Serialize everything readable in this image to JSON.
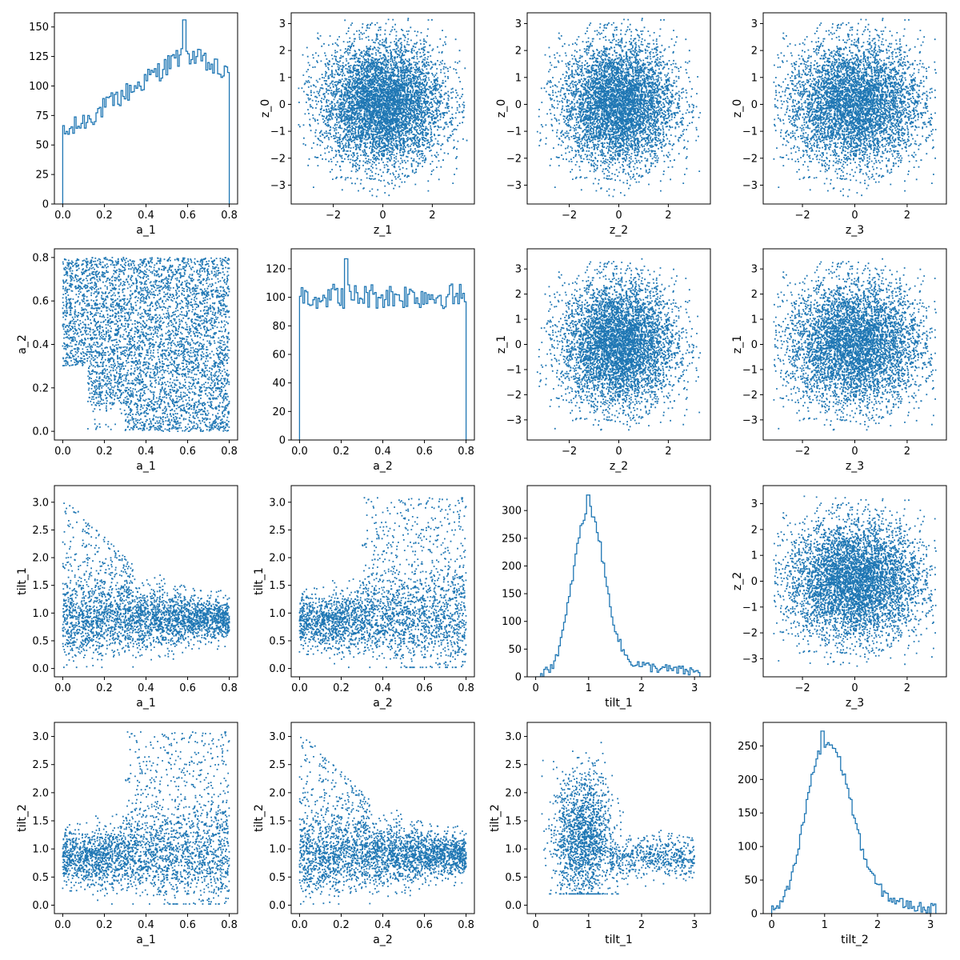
{
  "style": {
    "series_color": "#1f77b4"
  },
  "chart_data": [
    {
      "type": "histogram",
      "row": 0,
      "col": 0,
      "xlabel": "a_1",
      "ylabel": "",
      "xlim": [
        -0.04,
        0.84
      ],
      "ylim": [
        0,
        162
      ],
      "xticks": [
        0.0,
        0.2,
        0.4,
        0.6,
        0.8
      ],
      "xticklabels": [
        "0.0",
        "0.2",
        "0.4",
        "0.6",
        "0.8"
      ],
      "yticks": [
        0,
        25,
        50,
        75,
        100,
        125,
        150
      ],
      "yticklabels": [
        "0",
        "25",
        "50",
        "75",
        "100",
        "125",
        "150"
      ],
      "bin_range": [
        0,
        0.8
      ],
      "dist": {
        "shape": "ramp",
        "lo": 58,
        "hi": 128,
        "decline": 20,
        "noise": 9,
        "peak": {
          "x": 0.585,
          "v": 156
        }
      }
    },
    {
      "type": "scatter",
      "row": 0,
      "col": 1,
      "xlabel": "z_1",
      "ylabel": "z_0",
      "xlim": [
        -3.7,
        3.7
      ],
      "ylim": [
        -3.7,
        3.4
      ],
      "xticks": [
        -2,
        0,
        2
      ],
      "xticklabels": [
        "−2",
        "0",
        "2"
      ],
      "yticks": [
        -3,
        -2,
        -1,
        0,
        1,
        2,
        3
      ],
      "yticklabels": [
        "−3",
        "−2",
        "−1",
        "0",
        "1",
        "2",
        "3"
      ],
      "dist": {
        "kind": "gauss2",
        "x": {
          "sd": 1.25,
          "clip": [
            -3.4,
            3.4
          ]
        },
        "y": {
          "sd": 1.15,
          "clip": [
            -3.45,
            3.2
          ]
        }
      }
    },
    {
      "type": "scatter",
      "row": 0,
      "col": 2,
      "xlabel": "z_2",
      "ylabel": "z_0",
      "xlim": [
        -3.7,
        3.7
      ],
      "ylim": [
        -3.7,
        3.4
      ],
      "xticks": [
        -2,
        0,
        2
      ],
      "xticklabels": [
        "−2",
        "0",
        "2"
      ],
      "yticks": [
        -3,
        -2,
        -1,
        0,
        1,
        2,
        3
      ],
      "yticklabels": [
        "−3",
        "−2",
        "−1",
        "0",
        "1",
        "2",
        "3"
      ],
      "dist": {
        "kind": "gauss2",
        "x": {
          "sd": 1.15,
          "clip": [
            -3.3,
            3.3
          ]
        },
        "y": {
          "sd": 1.15,
          "clip": [
            -3.45,
            3.2
          ]
        }
      }
    },
    {
      "type": "scatter",
      "row": 0,
      "col": 3,
      "xlabel": "z_3",
      "ylabel": "z_0",
      "xlim": [
        -3.5,
        3.5
      ],
      "ylim": [
        -3.7,
        3.4
      ],
      "xticks": [
        -2,
        0,
        2
      ],
      "xticklabels": [
        "−2",
        "0",
        "2"
      ],
      "yticks": [
        -3,
        -2,
        -1,
        0,
        1,
        2,
        3
      ],
      "yticklabels": [
        "−3",
        "−2",
        "−1",
        "0",
        "1",
        "2",
        "3"
      ],
      "dist": {
        "kind": "gauss2",
        "x": {
          "sd": 1.3,
          "clip": [
            -3.1,
            3.1
          ]
        },
        "y": {
          "sd": 1.15,
          "clip": [
            -3.45,
            3.2
          ]
        }
      }
    },
    {
      "type": "scatter",
      "row": 1,
      "col": 0,
      "xlabel": "a_1",
      "ylabel": "a_2",
      "xlim": [
        -0.04,
        0.84
      ],
      "ylim": [
        -0.04,
        0.84
      ],
      "xticks": [
        0.0,
        0.2,
        0.4,
        0.6,
        0.8
      ],
      "xticklabels": [
        "0.0",
        "0.2",
        "0.4",
        "0.6",
        "0.8"
      ],
      "yticks": [
        0.0,
        0.2,
        0.4,
        0.6,
        0.8
      ],
      "yticklabels": [
        "0.0",
        "0.2",
        "0.4",
        "0.6",
        "0.8"
      ],
      "dist": {
        "kind": "spin",
        "a": "x",
        "b": "y"
      }
    },
    {
      "type": "histogram",
      "row": 1,
      "col": 1,
      "xlabel": "a_2",
      "ylabel": "",
      "xlim": [
        -0.04,
        0.84
      ],
      "ylim": [
        0,
        134
      ],
      "xticks": [
        0.0,
        0.2,
        0.4,
        0.6,
        0.8
      ],
      "xticklabels": [
        "0.0",
        "0.2",
        "0.4",
        "0.6",
        "0.8"
      ],
      "yticks": [
        0,
        20,
        40,
        60,
        80,
        100,
        120
      ],
      "yticklabels": [
        "0",
        "20",
        "40",
        "60",
        "80",
        "100",
        "120"
      ],
      "bin_range": [
        0,
        0.8
      ],
      "dist": {
        "shape": "flat",
        "lo": 101,
        "hi": 101,
        "decline": 0,
        "noise": 9,
        "peak": {
          "x": 0.225,
          "v": 127
        }
      }
    },
    {
      "type": "scatter",
      "row": 1,
      "col": 2,
      "xlabel": "z_2",
      "ylabel": "z_1",
      "xlim": [
        -3.7,
        3.7
      ],
      "ylim": [
        -3.8,
        3.8
      ],
      "xticks": [
        -2,
        0,
        2
      ],
      "xticklabels": [
        "−2",
        "0",
        "2"
      ],
      "yticks": [
        -3,
        -2,
        -1,
        0,
        1,
        2,
        3
      ],
      "yticklabels": [
        "−3",
        "−2",
        "−1",
        "0",
        "1",
        "2",
        "3"
      ],
      "dist": {
        "kind": "gauss2",
        "x": {
          "sd": 1.15,
          "clip": [
            -3.3,
            3.3
          ]
        },
        "y": {
          "sd": 1.25,
          "clip": [
            -3.4,
            3.4
          ]
        }
      }
    },
    {
      "type": "scatter",
      "row": 1,
      "col": 3,
      "xlabel": "z_3",
      "ylabel": "z_1",
      "xlim": [
        -3.5,
        3.5
      ],
      "ylim": [
        -3.8,
        3.8
      ],
      "xticks": [
        -2,
        0,
        2
      ],
      "xticklabels": [
        "−2",
        "0",
        "2"
      ],
      "yticks": [
        -3,
        -2,
        -1,
        0,
        1,
        2,
        3
      ],
      "yticklabels": [
        "−3",
        "−2",
        "−1",
        "0",
        "1",
        "2",
        "3"
      ],
      "dist": {
        "kind": "gauss2",
        "x": {
          "sd": 1.3,
          "clip": [
            -3.1,
            3.1
          ]
        },
        "y": {
          "sd": 1.25,
          "clip": [
            -3.4,
            3.4
          ]
        }
      }
    },
    {
      "type": "scatter",
      "row": 2,
      "col": 0,
      "xlabel": "a_1",
      "ylabel": "tilt_1",
      "xlim": [
        -0.04,
        0.84
      ],
      "ylim": [
        -0.15,
        3.3
      ],
      "xticks": [
        0.0,
        0.2,
        0.4,
        0.6,
        0.8
      ],
      "xticklabels": [
        "0.0",
        "0.2",
        "0.4",
        "0.6",
        "0.8"
      ],
      "yticks": [
        0.0,
        0.5,
        1.0,
        1.5,
        2.0,
        2.5,
        3.0
      ],
      "yticklabels": [
        "0.0",
        "0.5",
        "1.0",
        "1.5",
        "2.0",
        "2.5",
        "3.0"
      ],
      "dist": {
        "kind": "spin_tilt",
        "spin": "x",
        "tilt": "y",
        "which": 1
      }
    },
    {
      "type": "scatter",
      "row": 2,
      "col": 1,
      "xlabel": "a_2",
      "ylabel": "tilt_1",
      "xlim": [
        -0.04,
        0.84
      ],
      "ylim": [
        -0.15,
        3.3
      ],
      "xticks": [
        0.0,
        0.2,
        0.4,
        0.6,
        0.8
      ],
      "xticklabels": [
        "0.0",
        "0.2",
        "0.4",
        "0.6",
        "0.8"
      ],
      "yticks": [
        0.0,
        0.5,
        1.0,
        1.5,
        2.0,
        2.5,
        3.0
      ],
      "yticklabels": [
        "0.0",
        "0.5",
        "1.0",
        "1.5",
        "2.0",
        "2.5",
        "3.0"
      ],
      "dist": {
        "kind": "spin_tilt",
        "spin": "x",
        "tilt": "y",
        "which": 2
      }
    },
    {
      "type": "histogram",
      "row": 2,
      "col": 2,
      "xlabel": "tilt_1",
      "ylabel": "",
      "xlim": [
        -0.16,
        3.3
      ],
      "ylim": [
        0,
        345
      ],
      "xticks": [
        0,
        1,
        2,
        3
      ],
      "xticklabels": [
        "0",
        "1",
        "2",
        "3"
      ],
      "yticks": [
        0,
        50,
        100,
        150,
        200,
        250,
        300
      ],
      "yticklabels": [
        "0",
        "50",
        "100",
        "150",
        "200",
        "250",
        "300"
      ],
      "bin_range": [
        0,
        3.1
      ],
      "dist": {
        "shape": "peak",
        "center": 1.0,
        "height": 300,
        "sdL": 0.3,
        "sdR": 0.28,
        "tail": 30,
        "tailDecay": 0.8,
        "noise": 9,
        "peak": {
          "x": 1.0,
          "v": 328
        }
      }
    },
    {
      "type": "scatter",
      "row": 2,
      "col": 3,
      "xlabel": "z_3",
      "ylabel": "z_2",
      "xlim": [
        -3.5,
        3.5
      ],
      "ylim": [
        -3.7,
        3.7
      ],
      "xticks": [
        -2,
        0,
        2
      ],
      "xticklabels": [
        "−2",
        "0",
        "2"
      ],
      "yticks": [
        -3,
        -2,
        -1,
        0,
        1,
        2,
        3
      ],
      "yticklabels": [
        "−3",
        "−2",
        "−1",
        "0",
        "1",
        "2",
        "3"
      ],
      "dist": {
        "kind": "gauss2",
        "x": {
          "sd": 1.3,
          "clip": [
            -3.1,
            3.1
          ]
        },
        "y": {
          "sd": 1.15,
          "clip": [
            -3.3,
            3.3
          ]
        }
      }
    },
    {
      "type": "scatter",
      "row": 3,
      "col": 0,
      "xlabel": "a_1",
      "ylabel": "tilt_2",
      "xlim": [
        -0.04,
        0.84
      ],
      "ylim": [
        -0.15,
        3.25
      ],
      "xticks": [
        0.0,
        0.2,
        0.4,
        0.6,
        0.8
      ],
      "xticklabels": [
        "0.0",
        "0.2",
        "0.4",
        "0.6",
        "0.8"
      ],
      "yticks": [
        0.0,
        0.5,
        1.0,
        1.5,
        2.0,
        2.5,
        3.0
      ],
      "yticklabels": [
        "0.0",
        "0.5",
        "1.0",
        "1.5",
        "2.0",
        "2.5",
        "3.0"
      ],
      "dist": {
        "kind": "spin_tilt",
        "spin": "x",
        "tilt": "y",
        "which": 2
      }
    },
    {
      "type": "scatter",
      "row": 3,
      "col": 1,
      "xlabel": "a_2",
      "ylabel": "tilt_2",
      "xlim": [
        -0.04,
        0.84
      ],
      "ylim": [
        -0.15,
        3.25
      ],
      "xticks": [
        0.0,
        0.2,
        0.4,
        0.6,
        0.8
      ],
      "xticklabels": [
        "0.0",
        "0.2",
        "0.4",
        "0.6",
        "0.8"
      ],
      "yticks": [
        0.0,
        0.5,
        1.0,
        1.5,
        2.0,
        2.5,
        3.0
      ],
      "yticklabels": [
        "0.0",
        "0.5",
        "1.0",
        "1.5",
        "2.0",
        "2.5",
        "3.0"
      ],
      "dist": {
        "kind": "spin_tilt",
        "spin": "x",
        "tilt": "y",
        "which": 1
      }
    },
    {
      "type": "scatter",
      "row": 3,
      "col": 2,
      "xlabel": "tilt_1",
      "ylabel": "tilt_2",
      "xlim": [
        -0.16,
        3.3
      ],
      "ylim": [
        -0.15,
        3.25
      ],
      "xticks": [
        0,
        1,
        2,
        3
      ],
      "xticklabels": [
        "0",
        "1",
        "2",
        "3"
      ],
      "yticks": [
        0.0,
        0.5,
        1.0,
        1.5,
        2.0,
        2.5,
        3.0
      ],
      "yticklabels": [
        "0.0",
        "0.5",
        "1.0",
        "1.5",
        "2.0",
        "2.5",
        "3.0"
      ],
      "dist": {
        "kind": "tilt_tilt"
      }
    },
    {
      "type": "histogram",
      "row": 3,
      "col": 3,
      "xlabel": "tilt_2",
      "ylabel": "",
      "xlim": [
        -0.16,
        3.3
      ],
      "ylim": [
        0,
        285
      ],
      "xticks": [
        0,
        1,
        2,
        3
      ],
      "xticklabels": [
        "0",
        "1",
        "2",
        "3"
      ],
      "yticks": [
        0,
        50,
        100,
        150,
        200,
        250
      ],
      "yticklabels": [
        "0",
        "50",
        "100",
        "150",
        "200",
        "250"
      ],
      "bin_range": [
        0,
        3.1
      ],
      "dist": {
        "shape": "peak",
        "center": 0.95,
        "height": 240,
        "sdL": 0.33,
        "sdR": 0.45,
        "tail": 55,
        "tailDecay": 1.3,
        "noise": 8,
        "peak": {
          "x": 0.95,
          "v": 272
        }
      }
    }
  ]
}
